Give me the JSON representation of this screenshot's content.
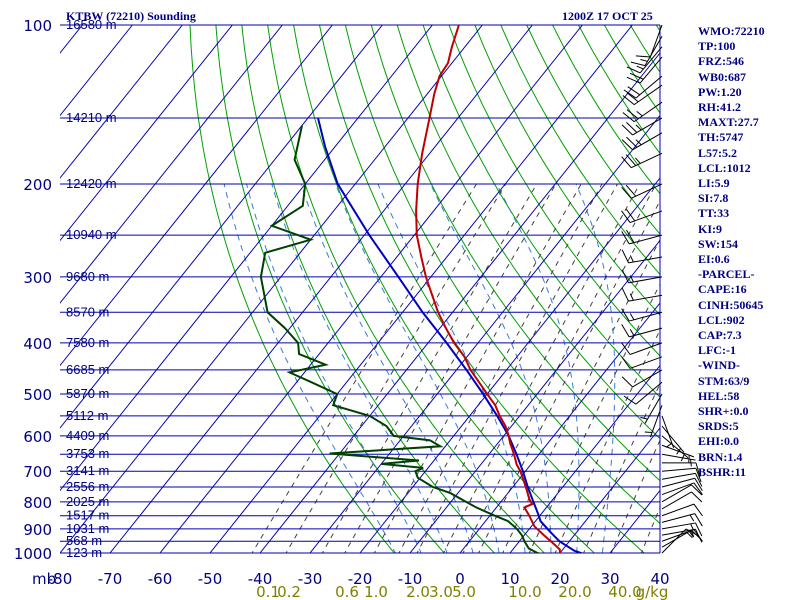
{
  "header": {
    "station_title": "KTBW (72210) Sounding",
    "datetime": "1200Z 17 OCT 25"
  },
  "indices": [
    "WMO:72210",
    "TP:100",
    "FRZ:546",
    "WB0:687",
    "PW:1.20",
    "RH:41.2",
    "MAXT:27.7",
    "TH:5747",
    "L57:5.2",
    "LCL:1012",
    "LI:5.9",
    "SI:7.8",
    "TT:33",
    "KI:9",
    "SW:154",
    "EI:0.6",
    "-PARCEL-",
    "CAPE:16",
    "CINH:50645",
    "LCL:902",
    "CAP:7.3",
    "LFC:-1",
    "-WIND-",
    "STM:63/9",
    "HEL:58",
    "SHR+:0.0",
    "SRDS:5",
    "EHI:0.0",
    "BRN:1.4",
    "BSHR:11"
  ],
  "colors": {
    "grid": "#0000b0",
    "dry_adiabat": "#00a000",
    "mixing_ratio": "#404040",
    "moist_adiabat": "#3a7bd5",
    "temperature": "#c00000",
    "dewpoint": "#004000",
    "parcel": "#0000c0",
    "mixing_label": "#808000",
    "text": "#000080",
    "wind": "#000000"
  },
  "chart_data": {
    "type": "skew-t log-p sounding",
    "title": "KTBW (72210) Sounding",
    "pressure_unit": "mb",
    "temperature_unit": "°C",
    "mixing_ratio_unit": "g/kg",
    "x_range": [
      -80,
      40
    ],
    "y_range_mb": [
      1000,
      100
    ],
    "y_axis_label": "mb",
    "pressure_ticks": [
      {
        "label": "100",
        "p": 100
      },
      {
        "label": "200",
        "p": 200
      },
      {
        "label": "300",
        "p": 300
      },
      {
        "label": "400",
        "p": 400
      },
      {
        "label": "500",
        "p": 500
      },
      {
        "label": "600",
        "p": 600
      },
      {
        "label": "700",
        "p": 700
      },
      {
        "label": "800",
        "p": 800
      },
      {
        "label": "900",
        "p": 900
      },
      {
        "label": "1000",
        "p": 1000
      }
    ],
    "temperature_ticks": [
      {
        "label": "-80",
        "t": -80
      },
      {
        "label": "-70",
        "t": -70
      },
      {
        "label": "-60",
        "t": -60
      },
      {
        "label": "-50",
        "t": -50
      },
      {
        "label": "-40",
        "t": -40
      },
      {
        "label": "-30",
        "t": -30
      },
      {
        "label": "-20",
        "t": -20
      },
      {
        "label": "-10",
        "t": -10
      },
      {
        "label": "0",
        "t": 0
      },
      {
        "label": "10",
        "t": 10
      },
      {
        "label": "20",
        "t": 20
      },
      {
        "label": "30",
        "t": 30
      },
      {
        "label": "40",
        "t": 40
      }
    ],
    "height_levels": [
      {
        "label": "16580 m",
        "p": 100
      },
      {
        "label": "14210 m",
        "p": 150
      },
      {
        "label": "12420 m",
        "p": 200
      },
      {
        "label": "10940 m",
        "p": 250
      },
      {
        "label": "9680 m",
        "p": 300
      },
      {
        "label": "8570 m",
        "p": 350
      },
      {
        "label": "7580 m",
        "p": 400
      },
      {
        "label": "6685 m",
        "p": 450
      },
      {
        "label": "5870 m",
        "p": 500
      },
      {
        "label": "5112 m",
        "p": 550
      },
      {
        "label": "4409 m",
        "p": 600
      },
      {
        "label": "3753 m",
        "p": 650
      },
      {
        "label": "3141 m",
        "p": 700
      },
      {
        "label": "2556 m",
        "p": 750
      },
      {
        "label": "2025 m",
        "p": 800
      },
      {
        "label": "1517 m",
        "p": 850
      },
      {
        "label": "1031 m",
        "p": 900
      },
      {
        "label": "568 m",
        "p": 950
      },
      {
        "label": "123 m",
        "p": 1000
      }
    ],
    "mixing_ratio_labels": [
      "0.1",
      "0.2",
      "0.6",
      "1.0",
      "2.0",
      "3.0",
      "5.0",
      "10.0",
      "20.0",
      "40.0",
      "g/kg"
    ],
    "mixing_ratio_lines_gkg": [
      0.1,
      0.2,
      0.4,
      0.6,
      1.0,
      1.5,
      2.0,
      3.0,
      4.0,
      5.0,
      7.0,
      10.0,
      14.0,
      20.0,
      28.0,
      40.0
    ],
    "dry_adiabats_theta_k": [
      260,
      270,
      280,
      290,
      300,
      310,
      320,
      330,
      340,
      350,
      360,
      370,
      380,
      390,
      400,
      410,
      420,
      430,
      440,
      450,
      460,
      470,
      480,
      490,
      500,
      510,
      520
    ],
    "moist_adiabats_start_c": [
      -10,
      -5,
      0,
      5,
      10,
      15,
      20,
      25,
      30
    ],
    "temperature_profile": [
      {
        "p": 1005,
        "t": 20.2
      },
      {
        "p": 1000,
        "t": 20.0
      },
      {
        "p": 985,
        "t": 19.4
      },
      {
        "p": 960,
        "t": 17.2
      },
      {
        "p": 925,
        "t": 13.9
      },
      {
        "p": 890,
        "t": 10.6
      },
      {
        "p": 850,
        "t": 7.9
      },
      {
        "p": 820,
        "t": 5.6
      },
      {
        "p": 808,
        "t": 6.6
      },
      {
        "p": 790,
        "t": 5.2
      },
      {
        "p": 760,
        "t": 3.3
      },
      {
        "p": 730,
        "t": 1.2
      },
      {
        "p": 700,
        "t": -1.0
      },
      {
        "p": 680,
        "t": -2.8
      },
      {
        "p": 650,
        "t": -5.0
      },
      {
        "p": 620,
        "t": -7.5
      },
      {
        "p": 600,
        "t": -9.0
      },
      {
        "p": 575,
        "t": -11.2
      },
      {
        "p": 550,
        "t": -14.0
      },
      {
        "p": 525,
        "t": -16.6
      },
      {
        "p": 500,
        "t": -20.0
      },
      {
        "p": 475,
        "t": -23.5
      },
      {
        "p": 450,
        "t": -27.2
      },
      {
        "p": 425,
        "t": -30.5
      },
      {
        "p": 400,
        "t": -34.8
      },
      {
        "p": 375,
        "t": -38.8
      },
      {
        "p": 350,
        "t": -42.9
      },
      {
        "p": 325,
        "t": -46.8
      },
      {
        "p": 300,
        "t": -51.0
      },
      {
        "p": 275,
        "t": -55.1
      },
      {
        "p": 250,
        "t": -59.5
      },
      {
        "p": 225,
        "t": -63.5
      },
      {
        "p": 200,
        "t": -67.5
      },
      {
        "p": 175,
        "t": -71.5
      },
      {
        "p": 150,
        "t": -75.7
      },
      {
        "p": 135,
        "t": -78.6
      },
      {
        "p": 125,
        "t": -80.4
      },
      {
        "p": 118,
        "t": -80.8
      },
      {
        "p": 110,
        "t": -82.6
      },
      {
        "p": 100,
        "t": -84.7
      }
    ],
    "dewpoint_profile": [
      {
        "p": 1005,
        "td": 16.5
      },
      {
        "p": 1000,
        "td": 15.5
      },
      {
        "p": 980,
        "td": 13.0
      },
      {
        "p": 950,
        "td": 11.0
      },
      {
        "p": 925,
        "td": 9.5
      },
      {
        "p": 900,
        "td": 7.5
      },
      {
        "p": 870,
        "td": 4.5
      },
      {
        "p": 850,
        "td": 1.0
      },
      {
        "p": 820,
        "td": -4.0
      },
      {
        "p": 800,
        "td": -7.0
      },
      {
        "p": 770,
        "td": -11.5
      },
      {
        "p": 750,
        "td": -16.0
      },
      {
        "p": 720,
        "td": -20.5
      },
      {
        "p": 700,
        "td": -22.0
      },
      {
        "p": 690,
        "td": -21.0
      },
      {
        "p": 678,
        "td": -30.0
      },
      {
        "p": 668,
        "td": -23.0
      },
      {
        "p": 648,
        "td": -42.0
      },
      {
        "p": 628,
        "td": -21.0
      },
      {
        "p": 612,
        "td": -24.0
      },
      {
        "p": 600,
        "td": -32.0
      },
      {
        "p": 575,
        "td": -35.0
      },
      {
        "p": 550,
        "td": -40.0
      },
      {
        "p": 525,
        "td": -49.0
      },
      {
        "p": 500,
        "td": -50.0
      },
      {
        "p": 475,
        "td": -57.0
      },
      {
        "p": 455,
        "td": -63.0
      },
      {
        "p": 440,
        "td": -57.0
      },
      {
        "p": 420,
        "td": -64.0
      },
      {
        "p": 400,
        "td": -66.0
      },
      {
        "p": 375,
        "td": -71.0
      },
      {
        "p": 350,
        "td": -77.0
      },
      {
        "p": 300,
        "td": -84.0
      },
      {
        "p": 270,
        "td": -87.0
      },
      {
        "p": 255,
        "td": -80.0
      },
      {
        "p": 240,
        "td": -90.0
      },
      {
        "p": 220,
        "td": -87.0
      },
      {
        "p": 200,
        "td": -90.0
      },
      {
        "p": 180,
        "td": -96.0
      },
      {
        "p": 155,
        "td": -100.0
      }
    ],
    "parcel_profile": [
      {
        "p": 1005,
        "t": 25.0
      },
      {
        "p": 990,
        "t": 22.5
      },
      {
        "p": 950,
        "t": 18.0
      },
      {
        "p": 910,
        "t": 14.5
      },
      {
        "p": 870,
        "t": 11.0
      },
      {
        "p": 850,
        "t": 9.8
      },
      {
        "p": 800,
        "t": 6.5
      },
      {
        "p": 750,
        "t": 3.0
      },
      {
        "p": 700,
        "t": -0.5
      },
      {
        "p": 650,
        "t": -4.5
      },
      {
        "p": 600,
        "t": -9.0
      },
      {
        "p": 550,
        "t": -14.5
      },
      {
        "p": 500,
        "t": -20.8
      },
      {
        "p": 450,
        "t": -28.0
      },
      {
        "p": 400,
        "t": -36.3
      },
      {
        "p": 350,
        "t": -46.0
      },
      {
        "p": 300,
        "t": -56.5
      },
      {
        "p": 250,
        "t": -69.0
      },
      {
        "p": 200,
        "t": -83.5
      },
      {
        "p": 170,
        "t": -92.0
      },
      {
        "p": 150,
        "t": -98.0
      }
    ],
    "wind_barbs": [
      {
        "p": 1000,
        "dir": 45,
        "spd": 10
      },
      {
        "p": 975,
        "dir": 60,
        "spd": 15
      },
      {
        "p": 950,
        "dir": 70,
        "spd": 15
      },
      {
        "p": 925,
        "dir": 80,
        "spd": 15
      },
      {
        "p": 900,
        "dir": 80,
        "spd": 15
      },
      {
        "p": 875,
        "dir": 75,
        "spd": 15
      },
      {
        "p": 850,
        "dir": 70,
        "spd": 10
      },
      {
        "p": 825,
        "dir": 60,
        "spd": 10
      },
      {
        "p": 800,
        "dir": 60,
        "spd": 10
      },
      {
        "p": 775,
        "dir": 70,
        "spd": 10
      },
      {
        "p": 750,
        "dir": 75,
        "spd": 10
      },
      {
        "p": 725,
        "dir": 80,
        "spd": 10
      },
      {
        "p": 700,
        "dir": 85,
        "spd": 10
      },
      {
        "p": 675,
        "dir": 90,
        "spd": 10
      },
      {
        "p": 650,
        "dir": 100,
        "spd": 5
      },
      {
        "p": 625,
        "dir": 110,
        "spd": 5
      },
      {
        "p": 600,
        "dir": 130,
        "spd": 5
      },
      {
        "p": 575,
        "dir": 140,
        "spd": 5
      },
      {
        "p": 550,
        "dir": 160,
        "spd": 5
      },
      {
        "p": 525,
        "dir": 200,
        "spd": 5
      },
      {
        "p": 500,
        "dir": 210,
        "spd": 5
      },
      {
        "p": 475,
        "dir": 230,
        "spd": 10
      },
      {
        "p": 450,
        "dir": 240,
        "spd": 10
      },
      {
        "p": 425,
        "dir": 250,
        "spd": 10
      },
      {
        "p": 400,
        "dir": 250,
        "spd": 10
      },
      {
        "p": 375,
        "dir": 255,
        "spd": 15
      },
      {
        "p": 350,
        "dir": 255,
        "spd": 15
      },
      {
        "p": 325,
        "dir": 260,
        "spd": 15
      },
      {
        "p": 300,
        "dir": 260,
        "spd": 15
      },
      {
        "p": 275,
        "dir": 260,
        "spd": 15
      },
      {
        "p": 250,
        "dir": 255,
        "spd": 20
      },
      {
        "p": 225,
        "dir": 250,
        "spd": 20
      },
      {
        "p": 200,
        "dir": 245,
        "spd": 20
      },
      {
        "p": 175,
        "dir": 245,
        "spd": 25
      },
      {
        "p": 160,
        "dir": 240,
        "spd": 25
      },
      {
        "p": 150,
        "dir": 240,
        "spd": 25
      },
      {
        "p": 140,
        "dir": 235,
        "spd": 25
      },
      {
        "p": 130,
        "dir": 235,
        "spd": 20
      },
      {
        "p": 125,
        "dir": 230,
        "spd": 20
      },
      {
        "p": 115,
        "dir": 220,
        "spd": 20
      },
      {
        "p": 110,
        "dir": 220,
        "spd": 15
      },
      {
        "p": 105,
        "dir": 210,
        "spd": 15
      },
      {
        "p": 100,
        "dir": 200,
        "spd": 10
      }
    ]
  }
}
